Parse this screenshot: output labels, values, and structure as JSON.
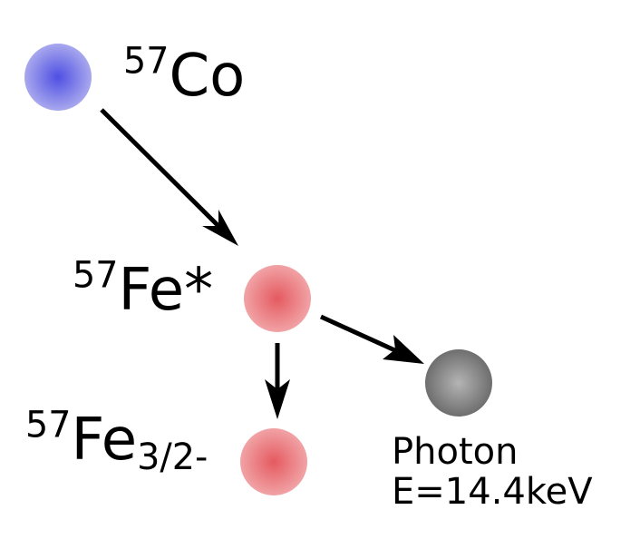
{
  "nodes": {
    "cobalt": {
      "mass_number": "57",
      "symbol": "Co",
      "color": "#6666e6"
    },
    "iron_excited": {
      "mass_number": "57",
      "symbol": "Fe*",
      "color": "#e66666"
    },
    "iron_ground": {
      "mass_number": "57",
      "symbol": "Fe",
      "state": "3/2-",
      "color": "#e66666"
    },
    "photon": {
      "name": "Photon",
      "energy": "E=14.4keV",
      "color": "#808080"
    }
  },
  "edges": [
    {
      "from": "cobalt",
      "to": "iron_excited"
    },
    {
      "from": "iron_excited",
      "to": "iron_ground"
    },
    {
      "from": "iron_excited",
      "to": "photon"
    }
  ]
}
